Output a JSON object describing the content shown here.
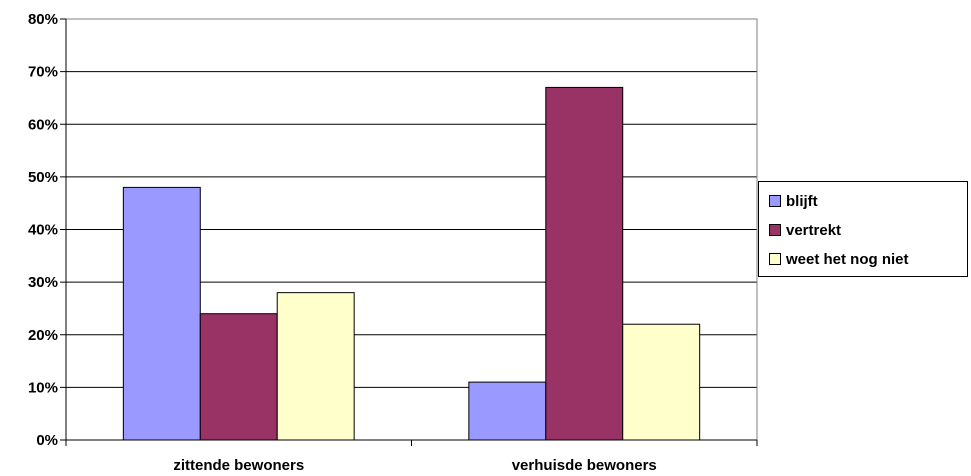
{
  "chart_data": {
    "type": "bar",
    "categories": [
      "zittende bewoners",
      "verhuisde bewoners"
    ],
    "series": [
      {
        "name": "blijft",
        "values": [
          48,
          11
        ],
        "color": "#9999ff"
      },
      {
        "name": "vertrekt",
        "values": [
          24,
          67
        ],
        "color": "#993366"
      },
      {
        "name": "weet het nog niet",
        "values": [
          28,
          22
        ],
        "color": "#ffffcc"
      }
    ],
    "yticks": [
      "0%",
      "10%",
      "20%",
      "30%",
      "40%",
      "50%",
      "60%",
      "70%",
      "80%"
    ],
    "ylim": [
      0,
      80
    ],
    "y_unit": "%",
    "grid": true,
    "legend_position": "right"
  }
}
